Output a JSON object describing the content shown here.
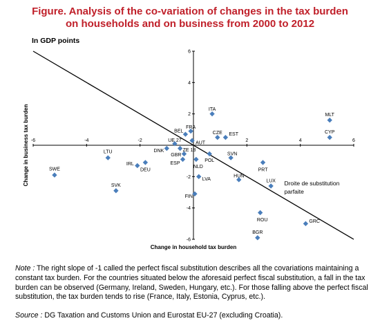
{
  "figure": {
    "title_line1": "Figure. Analysis of the co-variation of changes in the tax burden",
    "title_line2": "on households and on business from 2000 to 2012",
    "units": "In GDP points"
  },
  "note": {
    "label": "Note :",
    "text": " The right slope of -1 called the perfect fiscal substitution describes all the covariations maintaining a constant tax burden. For the countries situated below the aforesaid perfect fiscal substitution, a fall in the tax burden can be observed (Germany, Ireland, Sweden, Hungary, etc.). For those falling above the perfect fiscal substitution, the tax burden tends to rise (France, Italy, Estonia, Cyprus, etc.)."
  },
  "source": {
    "label": "Source :",
    "text": "  DG Taxation and Customs Union and Eurostat EU-27 (excluding Croatia)."
  },
  "chart_data": {
    "type": "scatter",
    "xlabel": "Change in household tax burden",
    "ylabel": "Change in business tax burden",
    "xlim": [
      -6,
      6
    ],
    "ylim": [
      -6,
      6
    ],
    "x_ticks": [
      "-6",
      "-4",
      "-2",
      "2",
      "4",
      "6"
    ],
    "y_ticks": [
      "6",
      "4",
      "2",
      "-2",
      "-4",
      "-6"
    ],
    "grid": false,
    "marker_color": "#4a7ebb",
    "line": {
      "label": "Droite de substitution\nparfaite",
      "slope": -1,
      "intercept": 0
    },
    "points": [
      {
        "label": "SWE",
        "x": -5.2,
        "y": -1.9
      },
      {
        "label": "LTU",
        "x": -3.2,
        "y": -0.8
      },
      {
        "label": "SVK",
        "x": -2.9,
        "y": -2.9
      },
      {
        "label": "IRL",
        "x": -2.1,
        "y": -1.3
      },
      {
        "label": "DEU",
        "x": -1.8,
        "y": -1.1
      },
      {
        "label": "DNK",
        "x": -1.0,
        "y": -0.2
      },
      {
        "label": "UE 27",
        "x": -0.7,
        "y": 0.1
      },
      {
        "label": "ZE 18",
        "x": -0.5,
        "y": -0.2
      },
      {
        "label": "GBR",
        "x": -0.35,
        "y": -0.55
      },
      {
        "label": "ESP",
        "x": -0.4,
        "y": -0.9
      },
      {
        "label": "BEL",
        "x": -0.3,
        "y": 0.7
      },
      {
        "label": "FRA",
        "x": -0.1,
        "y": 0.9
      },
      {
        "label": "AUT",
        "x": -0.05,
        "y": 0.3
      },
      {
        "label": "NLD",
        "x": 0.1,
        "y": -0.9
      },
      {
        "label": "POL",
        "x": 0.6,
        "y": -0.55
      },
      {
        "label": "LVA",
        "x": 0.2,
        "y": -2.0
      },
      {
        "label": "FIN",
        "x": 0.05,
        "y": -3.1
      },
      {
        "label": "ITA",
        "x": 0.7,
        "y": 2.0
      },
      {
        "label": "CZE",
        "x": 0.9,
        "y": 0.5
      },
      {
        "label": "EST",
        "x": 1.2,
        "y": 0.5
      },
      {
        "label": "SVN",
        "x": 1.4,
        "y": -0.8
      },
      {
        "label": "HUN",
        "x": 1.7,
        "y": -2.2
      },
      {
        "label": "PRT",
        "x": 2.6,
        "y": -1.1
      },
      {
        "label": "LUX",
        "x": 2.9,
        "y": -2.6
      },
      {
        "label": "ROU",
        "x": 2.5,
        "y": -4.3
      },
      {
        "label": "BGR",
        "x": 2.4,
        "y": -5.9
      },
      {
        "label": "GRC",
        "x": 4.2,
        "y": -5.0
      },
      {
        "label": "MLT",
        "x": 5.1,
        "y": 1.6
      },
      {
        "label": "CYP",
        "x": 5.1,
        "y": 0.5
      }
    ]
  }
}
